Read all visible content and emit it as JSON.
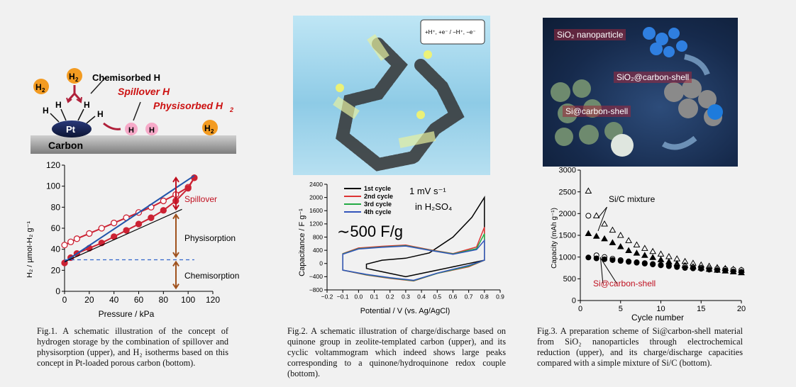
{
  "fig1": {
    "schematic": {
      "h2": "H",
      "sub2": "2",
      "chemisorbed": "Chemisorbed H",
      "spillover_h": "Spillover H",
      "physisorbed": "Physisorbed H",
      "pt": "Pt",
      "h": "H",
      "carbon": "Carbon"
    },
    "chart": {
      "ylabel": "H₂ / µmol-H₂ g⁻¹",
      "xlabel": "Pressure / kPa",
      "xticks": [
        "0",
        "20",
        "40",
        "60",
        "80",
        "100",
        "120"
      ],
      "yticks": [
        "0",
        "20",
        "40",
        "60",
        "80",
        "100",
        "120"
      ],
      "annot_spillover": "Spillover",
      "annot_physisorption": "Physisorption",
      "annot_chemisorption": "Chemisorption"
    },
    "caption": "Fig.1. A schematic illustration of the concept of hydrogen storage by the combination of spillover and physisorption (upper), and H₂ isotherms based on this concept in Pt-loaded porous carbon (bottom)."
  },
  "fig2": {
    "scheme_eq": "+H⁺, +e⁻ / −H⁺, −e⁻",
    "chart": {
      "ylabel": "Capacitance / F g⁻¹",
      "xlabel": "Potential / V (vs. Ag/AgCl)",
      "xticks": [
        "−0.2",
        "−0.1",
        "0.0",
        "0.1",
        "0.2",
        "0.3",
        "0.4",
        "0.5",
        "0.6",
        "0.7",
        "0.8",
        "0.9"
      ],
      "yticks": [
        "−800",
        "−400",
        "0",
        "400",
        "800",
        "1200",
        "1600",
        "2000",
        "2400"
      ],
      "legend": [
        "1st cycle",
        "2nd cycle",
        "3rd cycle",
        "4th cycle"
      ],
      "rate": "1 mV s⁻¹",
      "electrolyte": "in H₂SO₄",
      "big": "∼500 F/g"
    },
    "caption": "Fig.2. A schematic illustration of charge/discharge based on quinone group in zeolite-templated carbon (upper), and its cyclic voltammogram which indeed shows large peaks corresponding to a quinone/hydroquinone redox couple (bottom)."
  },
  "fig3": {
    "labels": {
      "sio2": "SiO₂ nanoparticle",
      "sio2c": "SiO₂@carbon-shell",
      "sic": "Si@carbon-shell"
    },
    "chart": {
      "ylabel": "Capacity (mAh g⁻¹)",
      "xlabel": "Cycle number",
      "xticks": [
        "0",
        "5",
        "10",
        "15",
        "20"
      ],
      "yticks": [
        "0",
        "500",
        "1000",
        "1500",
        "2000",
        "2500",
        "3000"
      ],
      "annot_mix": "Si/C mixture",
      "annot_sic": "Si@carbon-shell"
    },
    "caption": "Fig.3. A preparation scheme of Si@carbon-shell material from SiO₂ nanoparticles through electrochemical reduction (upper), and its charge/discharge capacities compared with a simple mixture of Si/C (bottom)."
  },
  "chart_data": [
    {
      "type": "line",
      "xlabel": "Pressure / kPa",
      "ylabel": "H2 / µmol-H2 g-1",
      "xlim": [
        0,
        120
      ],
      "ylim": [
        0,
        120
      ],
      "series": [
        {
          "x": [
            0,
            5,
            10,
            20,
            30,
            40,
            50,
            60,
            70,
            80,
            90,
            100,
            105
          ],
          "y": [
            44,
            47,
            50,
            55,
            60,
            65,
            70,
            75,
            80,
            86,
            92,
            99,
            108
          ],
          "color": "#cc2233"
        },
        {
          "x": [
            0,
            5,
            10,
            20,
            30,
            40,
            50,
            60,
            70,
            80,
            90,
            100,
            105
          ],
          "y": [
            27,
            32,
            36,
            41,
            46,
            52,
            58,
            64,
            70,
            77,
            86,
            98,
            108
          ],
          "color": "#cc2233"
        },
        {
          "x": [
            0,
            105
          ],
          "y": [
            28,
            110
          ],
          "color": "#2255aa"
        },
        {
          "x": [
            0,
            95
          ],
          "y": [
            28,
            78
          ],
          "color": "#000000"
        },
        {
          "x": [
            0,
            105
          ],
          "y": [
            30,
            30
          ],
          "color": "#3366cc"
        }
      ]
    },
    {
      "type": "line",
      "xlabel": "Potential / V (vs. Ag/AgCl)",
      "ylabel": "Capacitance / F g-1",
      "xlim": [
        -0.2,
        0.9
      ],
      "ylim": [
        -800,
        2400
      ],
      "series": [
        {
          "name": "1st cycle",
          "color": "#000000",
          "x": [
            0.05,
            0.15,
            0.3,
            0.45,
            0.6,
            0.72,
            0.8,
            0.8,
            0.7,
            0.5,
            0.3,
            0.15,
            0.05
          ],
          "y": [
            -20,
            100,
            160,
            320,
            800,
            1400,
            2000,
            100,
            0,
            -200,
            -400,
            -250,
            -150
          ]
        },
        {
          "name": "2nd cycle",
          "color": "#dd3333",
          "x": [
            -0.1,
            0.0,
            0.15,
            0.3,
            0.45,
            0.6,
            0.75,
            0.8,
            0.8,
            0.7,
            0.5,
            0.35,
            0.2,
            0.05,
            -0.1
          ],
          "y": [
            300,
            470,
            520,
            560,
            420,
            300,
            500,
            1100,
            100,
            -100,
            -300,
            -530,
            -450,
            -350,
            -200
          ]
        },
        {
          "name": "3rd cycle",
          "color": "#22aa44",
          "x": [
            -0.1,
            0.0,
            0.15,
            0.3,
            0.45,
            0.6,
            0.75,
            0.8,
            0.8,
            0.7,
            0.5,
            0.35,
            0.2,
            0.05,
            -0.1
          ],
          "y": [
            290,
            450,
            500,
            540,
            410,
            290,
            450,
            900,
            100,
            -80,
            -300,
            -520,
            -440,
            -340,
            -200
          ]
        },
        {
          "name": "4th cycle",
          "color": "#3355bb",
          "x": [
            -0.1,
            0.0,
            0.15,
            0.3,
            0.45,
            0.6,
            0.75,
            0.8,
            0.8,
            0.7,
            0.5,
            0.35,
            0.2,
            0.05,
            -0.1
          ],
          "y": [
            280,
            440,
            490,
            530,
            400,
            280,
            420,
            700,
            100,
            -60,
            -290,
            -510,
            -430,
            -330,
            -200
          ]
        }
      ]
    },
    {
      "type": "scatter",
      "xlabel": "Cycle number",
      "ylabel": "Capacity (mAh g-1)",
      "xlim": [
        0,
        20
      ],
      "ylim": [
        0,
        3000
      ],
      "series": [
        {
          "marker": "open-triangle",
          "x": [
            1,
            2,
            3,
            4,
            5,
            6,
            7,
            8,
            9,
            10,
            11,
            12,
            13,
            14,
            15,
            16,
            17,
            18,
            19,
            20
          ],
          "y": [
            2520,
            1950,
            1760,
            1620,
            1500,
            1380,
            1280,
            1200,
            1130,
            1070,
            1010,
            960,
            900,
            860,
            820,
            790,
            760,
            740,
            720,
            700
          ]
        },
        {
          "marker": "filled-triangle",
          "x": [
            1,
            2,
            3,
            4,
            5,
            6,
            7,
            8,
            9,
            10,
            11,
            12,
            13,
            14,
            15,
            16,
            17,
            18,
            19,
            20
          ],
          "y": [
            1540,
            1480,
            1420,
            1330,
            1240,
            1150,
            1090,
            1040,
            990,
            940,
            890,
            850,
            810,
            780,
            750,
            720,
            700,
            680,
            660,
            640
          ]
        },
        {
          "marker": "open-circle",
          "x": [
            1,
            2,
            3,
            4,
            5,
            6,
            7,
            8,
            9,
            10,
            11,
            12,
            13,
            14,
            15,
            16,
            17,
            18,
            19,
            20
          ],
          "y": [
            1950,
            1040,
            1000,
            960,
            930,
            900,
            880,
            860,
            840,
            820,
            800,
            790,
            780,
            760,
            750,
            740,
            730,
            720,
            710,
            700
          ]
        },
        {
          "marker": "filled-circle",
          "x": [
            1,
            2,
            3,
            4,
            5,
            6,
            7,
            8,
            9,
            10,
            11,
            12,
            13,
            14,
            15,
            16,
            17,
            18,
            19,
            20
          ],
          "y": [
            990,
            970,
            950,
            930,
            910,
            890,
            870,
            850,
            830,
            810,
            790,
            770,
            750,
            740,
            730,
            710,
            700,
            690,
            670,
            660
          ]
        }
      ]
    }
  ]
}
